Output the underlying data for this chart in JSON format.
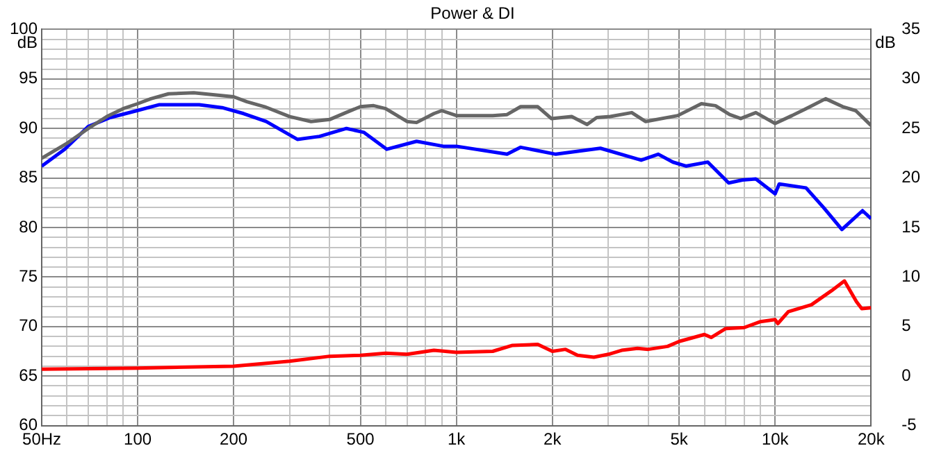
{
  "chart_data": {
    "type": "line",
    "title": "Power & DI",
    "ylabel": "dB",
    "y2label": "dB",
    "xlim": [
      50,
      20000
    ],
    "xticks": [
      {
        "value": 50,
        "label": "50Hz"
      },
      {
        "value": 60,
        "label": null
      },
      {
        "value": 70,
        "label": null
      },
      {
        "value": 80,
        "label": null
      },
      {
        "value": 90,
        "label": null
      },
      100,
      200,
      {
        "value": 300,
        "label": null
      },
      {
        "value": 400,
        "label": null
      },
      500,
      {
        "value": 600,
        "label": null
      },
      {
        "value": 700,
        "label": null
      },
      {
        "value": 800,
        "label": null
      },
      {
        "value": 900,
        "label": null
      },
      {
        "value": 1000,
        "label": "1k"
      },
      {
        "value": 2000,
        "label": "2k"
      },
      {
        "value": 3000,
        "label": null
      },
      {
        "value": 4000,
        "label": null
      },
      {
        "value": 5000,
        "label": "5k"
      },
      {
        "value": 6000,
        "label": null
      },
      {
        "value": 7000,
        "label": null
      },
      {
        "value": 8000,
        "label": null
      },
      {
        "value": 9000,
        "label": null
      },
      {
        "value": 10000,
        "label": "10k"
      },
      {
        "value": 20000,
        "label": "20k"
      }
    ],
    "ylim": [
      60,
      100
    ],
    "yticks": [
      60,
      {
        "value": 61,
        "label": null
      },
      {
        "value": 62,
        "label": null
      },
      {
        "value": 63,
        "label": null
      },
      {
        "value": 64,
        "label": null
      },
      65,
      {
        "value": 66,
        "label": null
      },
      {
        "value": 67,
        "label": null
      },
      {
        "value": 68,
        "label": null
      },
      {
        "value": 69,
        "label": null
      },
      70,
      {
        "value": 71,
        "label": null
      },
      {
        "value": 72,
        "label": null
      },
      {
        "value": 73,
        "label": null
      },
      {
        "value": 74,
        "label": null
      },
      75,
      {
        "value": 76,
        "label": null
      },
      {
        "value": 77,
        "label": null
      },
      {
        "value": 78,
        "label": null
      },
      {
        "value": 79,
        "label": null
      },
      80,
      {
        "value": 81,
        "label": null
      },
      {
        "value": 82,
        "label": null
      },
      {
        "value": 83,
        "label": null
      },
      {
        "value": 84,
        "label": null
      },
      85,
      {
        "value": 86,
        "label": null
      },
      {
        "value": 87,
        "label": null
      },
      {
        "value": 88,
        "label": null
      },
      {
        "value": 89,
        "label": null
      },
      90,
      {
        "value": 91,
        "label": null
      },
      {
        "value": 92,
        "label": null
      },
      {
        "value": 93,
        "label": null
      },
      {
        "value": 94,
        "label": null
      },
      95,
      {
        "value": 96,
        "label": null
      },
      {
        "value": 97,
        "label": null
      },
      {
        "value": 98,
        "label": null
      },
      {
        "value": 99,
        "label": null
      },
      100
    ],
    "y2lim": [
      -5,
      35
    ],
    "y2ticks": [
      -5,
      0,
      5,
      10,
      15,
      20,
      25,
      30,
      35
    ],
    "log": "x",
    "grid": true,
    "legend": false,
    "marker": "none",
    "line_style": "solid",
    "series": [
      {
        "color": "#666666",
        "x": [
          50,
          60,
          70,
          80,
          90,
          100,
          110,
          125,
          150,
          200,
          220,
          250,
          300,
          350,
          400,
          450,
          500,
          550,
          600,
          700,
          750,
          850,
          900,
          1000,
          1100,
          1300,
          1442,
          1591,
          1800,
          1986,
          2300,
          2570,
          2755,
          3040,
          3550,
          3920,
          4950,
          5870,
          6500,
          7200,
          7800,
          8700,
          10000,
          11300,
          12500,
          14400,
          16300,
          17900,
          20000
        ],
        "values": [
          87.0,
          88.5,
          90.0,
          91.2,
          92.0,
          92.5,
          93.0,
          93.5,
          93.6,
          93.2,
          92.7,
          92.2,
          91.2,
          90.7,
          90.9,
          91.6,
          92.2,
          92.3,
          92.0,
          90.7,
          90.6,
          91.5,
          91.8,
          91.3,
          91.3,
          91.3,
          91.4,
          92.2,
          92.2,
          91.0,
          91.2,
          90.4,
          91.1,
          91.2,
          91.6,
          90.7,
          91.3,
          92.5,
          92.3,
          91.4,
          91.0,
          91.6,
          90.5,
          91.3,
          92.0,
          93.0,
          92.2,
          91.8,
          90.3
        ]
      },
      {
        "color": "#0000ff",
        "x": [
          50,
          59,
          70,
          82,
          99.5,
          117,
          156,
          184,
          215,
          253,
          317,
          372,
          452,
          513,
          605,
          750,
          910,
          1000,
          1442,
          1591,
          2050,
          2830,
          3800,
          4300,
          4780,
          5250,
          6150,
          7150,
          7900,
          8700,
          10000,
          10300,
          12500,
          14200,
          16200,
          18800,
          20000
        ],
        "values": [
          86.2,
          87.9,
          90.2,
          91.1,
          91.8,
          92.4,
          92.4,
          92.1,
          91.5,
          90.7,
          88.9,
          89.2,
          90.0,
          89.6,
          87.9,
          88.7,
          88.2,
          88.2,
          87.4,
          88.1,
          87.4,
          88.0,
          86.8,
          87.4,
          86.6,
          86.2,
          86.6,
          84.5,
          84.8,
          84.9,
          83.4,
          84.4,
          84.0,
          82.0,
          79.8,
          81.7,
          80.9
        ]
      },
      {
        "color": "#ff0000",
        "axis": "y2",
        "x": [
          50,
          100,
          200,
          300,
          400,
          500,
          600,
          700,
          850,
          1000,
          1300,
          1500,
          1800,
          2000,
          2200,
          2400,
          2700,
          3000,
          3300,
          3700,
          4000,
          4600,
          5000,
          6000,
          6300,
          7000,
          8000,
          9000,
          10000,
          10200,
          11000,
          13000,
          15000,
          16500,
          18000,
          18700,
          20000
        ],
        "values": [
          0.7,
          0.8,
          1.0,
          1.5,
          2.0,
          2.1,
          2.3,
          2.2,
          2.6,
          2.4,
          2.5,
          3.1,
          3.2,
          2.5,
          2.7,
          2.1,
          1.9,
          2.2,
          2.6,
          2.8,
          2.7,
          3.0,
          3.5,
          4.2,
          3.9,
          4.8,
          4.9,
          5.5,
          5.7,
          5.3,
          6.5,
          7.2,
          8.6,
          9.6,
          7.5,
          6.8,
          6.9
        ]
      }
    ]
  }
}
